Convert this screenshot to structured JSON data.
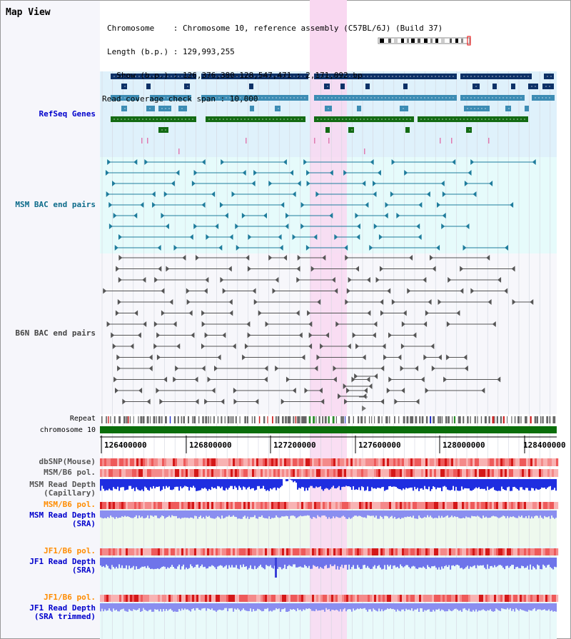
{
  "title": "Map View",
  "info": {
    "chromosome": "Chromosome    : Chromosome 10, reference assembly (C57BL/6J) (Build 37)",
    "length": "Length (b.p.) : 129,993,255",
    "show": "  Show (b.p.) : 126,376,380-128,547,471 : 2,171,092 bp",
    "span": "Read coverage check span : 10,000"
  },
  "tracks": {
    "refseq": "RefSeq Genes",
    "msm_bac": "MSM BAC end pairs",
    "b6n_bac": "B6N BAC end pairs",
    "repeat": "Repeat",
    "chromosome": "chromosome 10",
    "dbsnp": "dbSNP(Mouse)",
    "msm_pol": "MSM/B6 pol.",
    "msm_depth_cap_1": "MSM Read Depth",
    "msm_depth_cap_2": "(Capillary)",
    "msm_pol2": "MSM/B6 pol.",
    "msm_depth_sra_1": "MSM Read Depth",
    "msm_depth_sra_2": "(SRA)",
    "jf1_pol": "JF1/B6 pol.",
    "jf1_depth_sra_1": "JF1 Read Depth",
    "jf1_depth_sra_2": "(SRA)",
    "jf1_pol2": "JF1/B6 pol.",
    "jf1_depth_trim_1": "JF1 Read Depth",
    "jf1_depth_trim_2": "(SRA trimmed)"
  },
  "axis": {
    "ticks": [
      "126400000",
      "126800000",
      "127200000",
      "127600000",
      "128000000",
      "128400000"
    ]
  },
  "colors": {
    "refseq_bg": "#dff1fb",
    "msm_bac_bg": "#e6fbfb",
    "b6n_bg": "#f7f7fb",
    "highlight": "#f9d8f1",
    "navy": "#0d3167",
    "teal": "#1e7c9c",
    "steel": "#3c8cb4",
    "green": "#136b13",
    "chrom_green": "#0a6e0a",
    "label_blue": "#0000cc",
    "label_teal": "#0d6b8a",
    "label_orange": "#ff8c00",
    "label_grey": "#444444"
  }
}
